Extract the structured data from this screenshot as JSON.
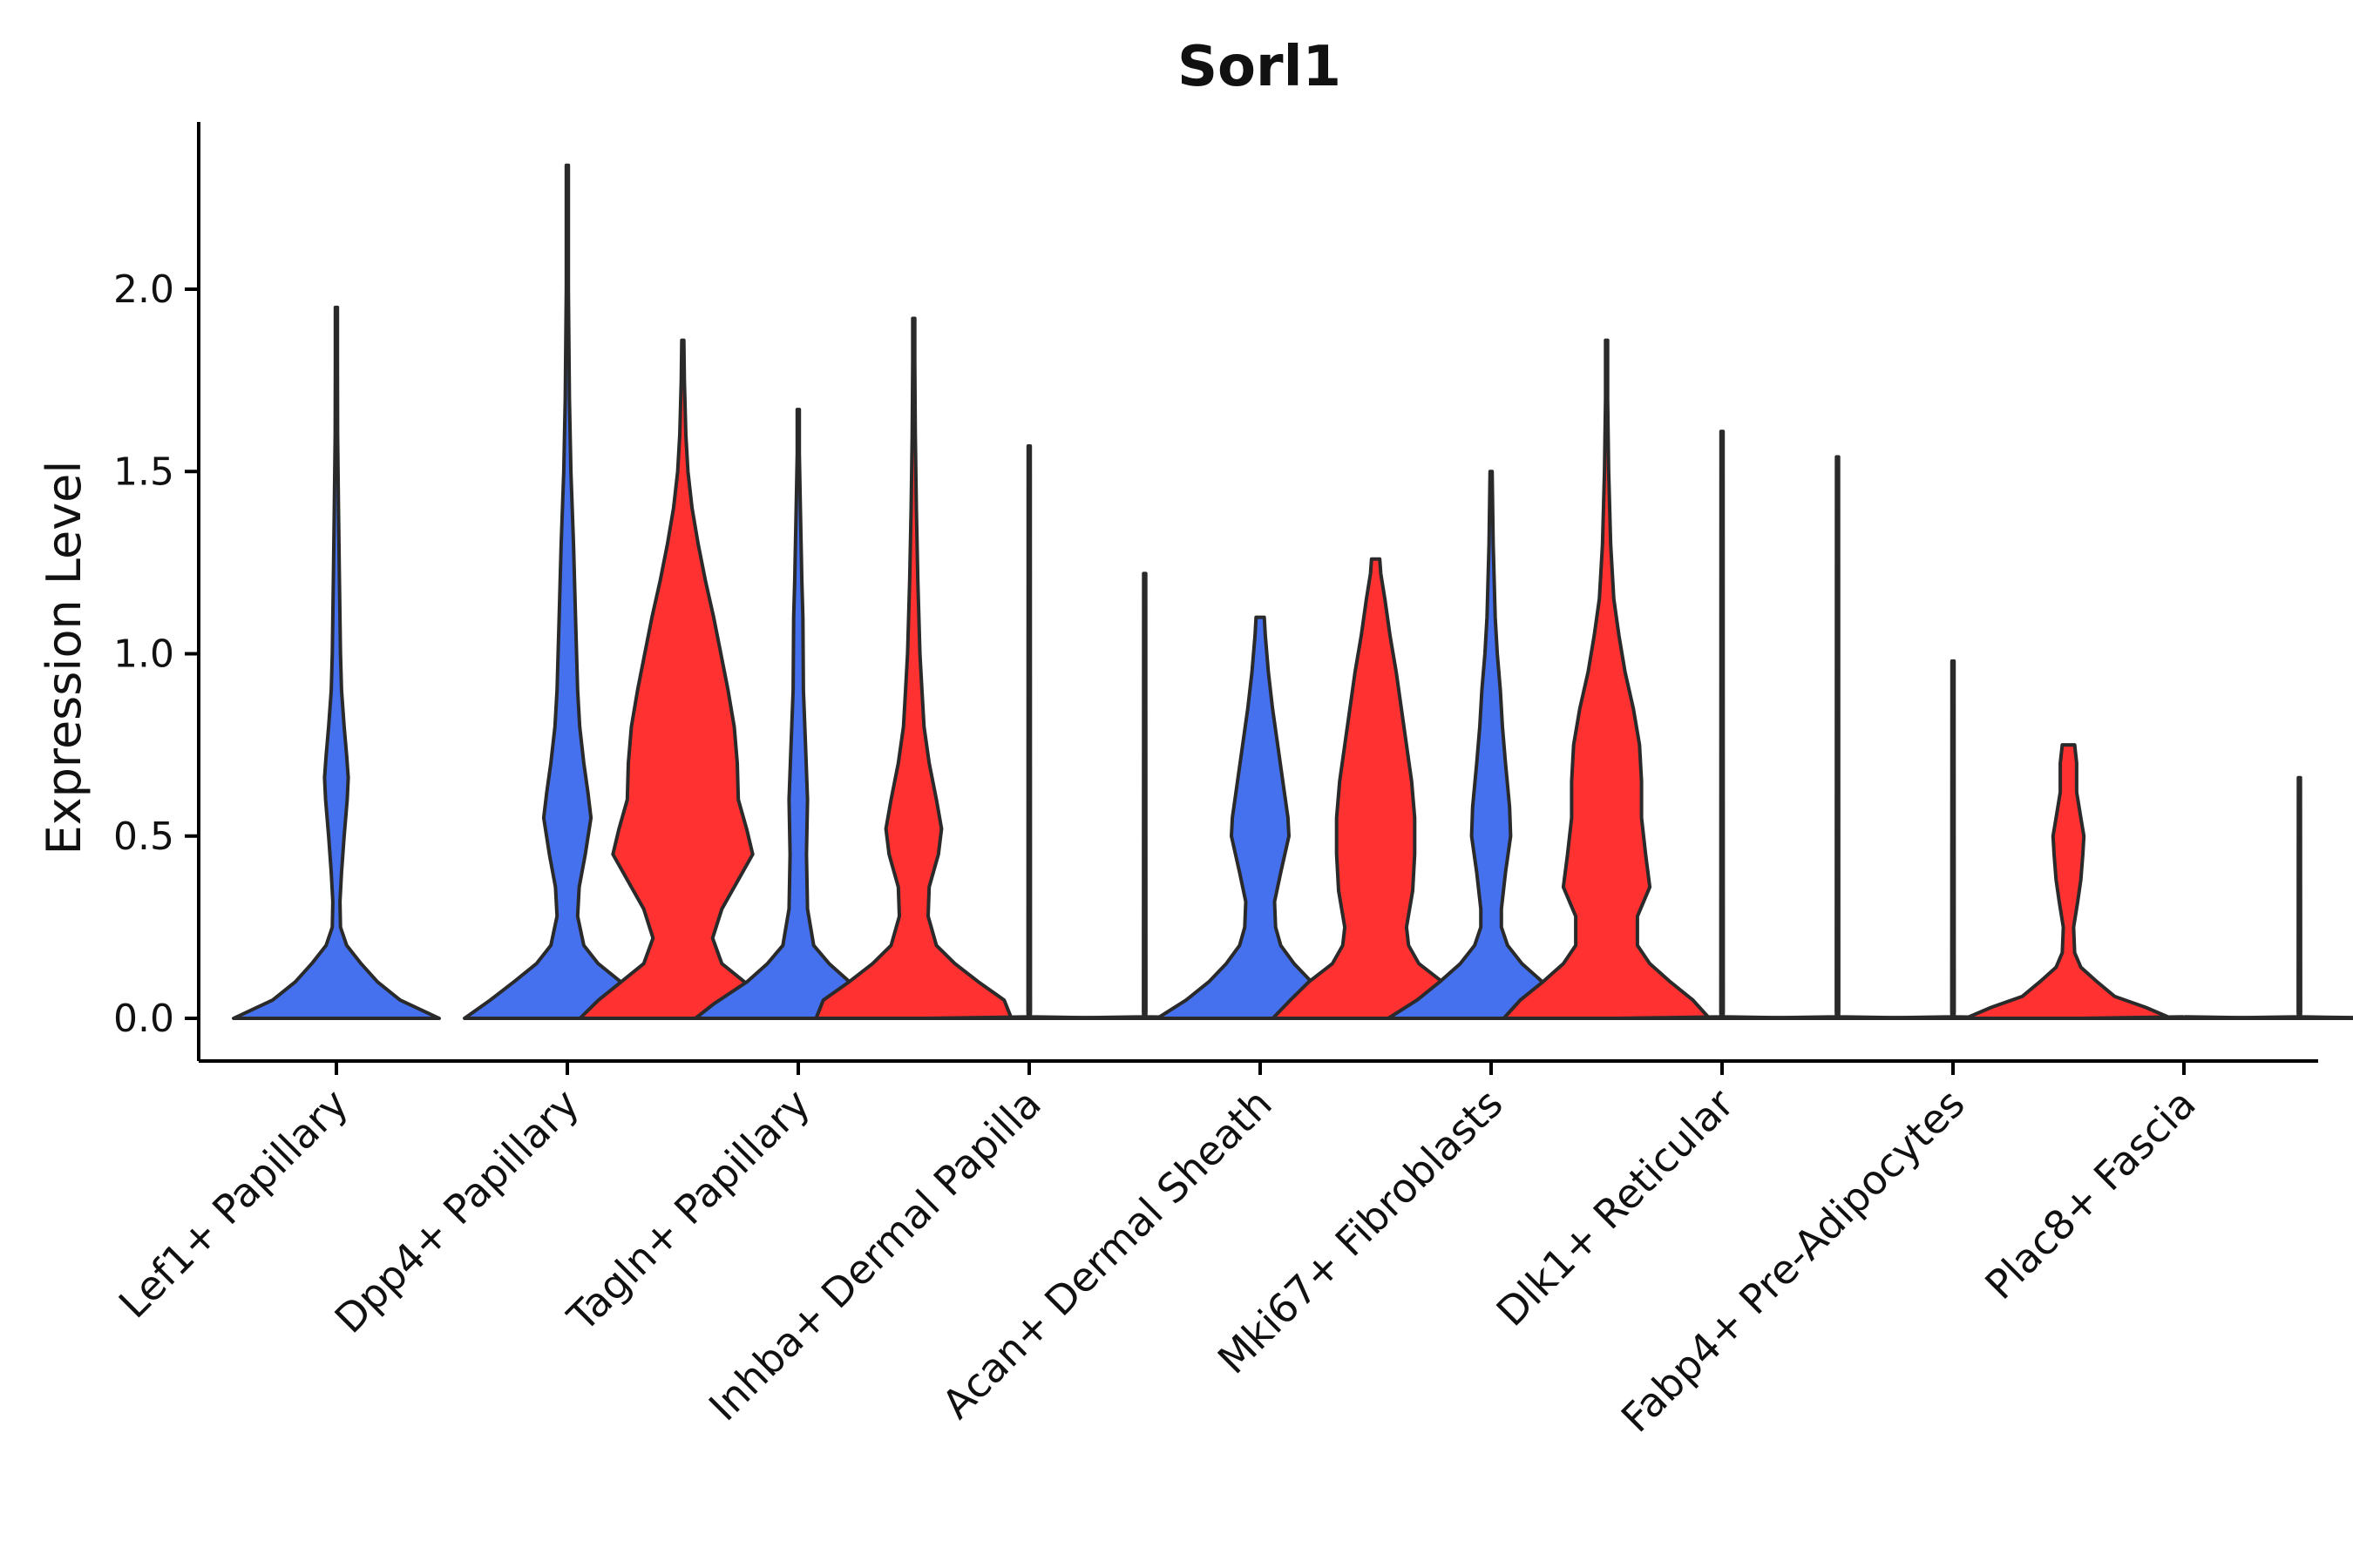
{
  "chart_data": {
    "type": "violin",
    "title": "Sorl1",
    "xlabel": "",
    "ylabel": "Expression Level",
    "ylim": [
      -0.12,
      2.45
    ],
    "yticks": [
      0.0,
      0.5,
      1.0,
      1.5,
      2.0
    ],
    "ytick_labels": [
      "0.0",
      "0.5",
      "1.0",
      "1.5",
      "2.0"
    ],
    "legend": "none",
    "groups": [
      {
        "name": "blue",
        "color": "#4671ee"
      },
      {
        "name": "red",
        "color": "#ff3131"
      }
    ],
    "categories": [
      "Lef1+ Papillary",
      "Dpp4+ Papillary",
      "Tagln+ Papillary",
      "Inhba+ Dermal Papilla",
      "Acan+ Dermal Sheath",
      "Mki67+ Fibroblasts",
      "Dlk1+ Reticular",
      "Fabp4+ Pre-Adipocytes",
      "Plac8+ Fascia"
    ],
    "violins": [
      {
        "category": "Lef1+ Papillary",
        "group": "blue",
        "max": 1.95,
        "profile": [
          [
            0.0,
            1.0
          ],
          [
            0.05,
            0.62
          ],
          [
            0.1,
            0.4
          ],
          [
            0.15,
            0.24
          ],
          [
            0.2,
            0.1
          ],
          [
            0.25,
            0.04
          ],
          [
            0.32,
            0.035
          ],
          [
            0.4,
            0.05
          ],
          [
            0.5,
            0.075
          ],
          [
            0.6,
            0.105
          ],
          [
            0.66,
            0.115
          ],
          [
            0.72,
            0.1
          ],
          [
            0.8,
            0.075
          ],
          [
            0.9,
            0.05
          ],
          [
            1.0,
            0.04
          ],
          [
            1.2,
            0.03
          ],
          [
            1.4,
            0.02
          ],
          [
            1.6,
            0.012
          ],
          [
            1.8,
            0.006
          ],
          [
            1.95,
            0.002
          ]
        ]
      },
      {
        "category": "Dpp4+ Papillary",
        "group": "blue",
        "max": 2.34,
        "profile": [
          [
            0.0,
            1.0
          ],
          [
            0.05,
            0.75
          ],
          [
            0.1,
            0.52
          ],
          [
            0.15,
            0.3
          ],
          [
            0.2,
            0.16
          ],
          [
            0.28,
            0.1
          ],
          [
            0.36,
            0.115
          ],
          [
            0.45,
            0.175
          ],
          [
            0.55,
            0.23
          ],
          [
            0.62,
            0.2
          ],
          [
            0.7,
            0.16
          ],
          [
            0.8,
            0.12
          ],
          [
            0.9,
            0.1
          ],
          [
            1.0,
            0.09
          ],
          [
            1.1,
            0.08
          ],
          [
            1.3,
            0.06
          ],
          [
            1.5,
            0.035
          ],
          [
            1.7,
            0.02
          ],
          [
            2.0,
            0.01
          ],
          [
            2.34,
            0.002
          ]
        ]
      },
      {
        "category": "Dpp4+ Papillary",
        "group": "red",
        "max": 1.86,
        "profile": [
          [
            0.0,
            1.0
          ],
          [
            0.05,
            0.82
          ],
          [
            0.1,
            0.6
          ],
          [
            0.15,
            0.38
          ],
          [
            0.22,
            0.29
          ],
          [
            0.3,
            0.38
          ],
          [
            0.38,
            0.54
          ],
          [
            0.45,
            0.68
          ],
          [
            0.52,
            0.62
          ],
          [
            0.6,
            0.54
          ],
          [
            0.7,
            0.53
          ],
          [
            0.8,
            0.5
          ],
          [
            0.9,
            0.44
          ],
          [
            1.0,
            0.37
          ],
          [
            1.1,
            0.3
          ],
          [
            1.2,
            0.22
          ],
          [
            1.3,
            0.15
          ],
          [
            1.4,
            0.09
          ],
          [
            1.5,
            0.05
          ],
          [
            1.6,
            0.03
          ],
          [
            1.75,
            0.015
          ],
          [
            1.86,
            0.003
          ]
        ]
      },
      {
        "category": "Tagln+ Papillary",
        "group": "blue",
        "max": 1.67,
        "profile": [
          [
            0.0,
            1.0
          ],
          [
            0.04,
            0.82
          ],
          [
            0.1,
            0.5
          ],
          [
            0.15,
            0.3
          ],
          [
            0.2,
            0.15
          ],
          [
            0.3,
            0.09
          ],
          [
            0.45,
            0.08
          ],
          [
            0.6,
            0.09
          ],
          [
            0.75,
            0.07
          ],
          [
            0.9,
            0.05
          ],
          [
            1.1,
            0.045
          ],
          [
            1.2,
            0.035
          ],
          [
            1.4,
            0.02
          ],
          [
            1.55,
            0.01
          ],
          [
            1.67,
            0.002
          ]
        ]
      },
      {
        "category": "Tagln+ Papillary",
        "group": "red",
        "max": 1.92,
        "profile": [
          [
            0.0,
            0.95
          ],
          [
            0.05,
            0.88
          ],
          [
            0.1,
            0.63
          ],
          [
            0.15,
            0.4
          ],
          [
            0.2,
            0.22
          ],
          [
            0.28,
            0.14
          ],
          [
            0.36,
            0.15
          ],
          [
            0.45,
            0.24
          ],
          [
            0.52,
            0.27
          ],
          [
            0.6,
            0.22
          ],
          [
            0.7,
            0.15
          ],
          [
            0.8,
            0.1
          ],
          [
            0.9,
            0.08
          ],
          [
            1.0,
            0.06
          ],
          [
            1.2,
            0.04
          ],
          [
            1.4,
            0.025
          ],
          [
            1.6,
            0.015
          ],
          [
            1.8,
            0.008
          ],
          [
            1.92,
            0.002
          ]
        ]
      },
      {
        "category": "Inhba+ Dermal Papilla",
        "group": "blue",
        "max": 1.57,
        "profile": [
          [
            0.0,
            1.0
          ],
          [
            0.004,
            0.0
          ],
          [
            0.02,
            0.012
          ],
          [
            1.57,
            0.004
          ]
        ]
      },
      {
        "category": "Inhba+ Dermal Papilla",
        "group": "red",
        "max": 1.22,
        "profile": [
          [
            0.0,
            1.0
          ],
          [
            0.004,
            0.0
          ],
          [
            0.02,
            0.012
          ],
          [
            1.22,
            0.004
          ]
        ]
      },
      {
        "category": "Acan+ Dermal Sheath",
        "group": "blue",
        "max": 1.1,
        "profile": [
          [
            0.0,
            1.0
          ],
          [
            0.05,
            0.72
          ],
          [
            0.1,
            0.5
          ],
          [
            0.15,
            0.33
          ],
          [
            0.2,
            0.2
          ],
          [
            0.25,
            0.15
          ],
          [
            0.32,
            0.14
          ],
          [
            0.4,
            0.2
          ],
          [
            0.5,
            0.28
          ],
          [
            0.55,
            0.27
          ],
          [
            0.65,
            0.22
          ],
          [
            0.75,
            0.17
          ],
          [
            0.85,
            0.12
          ],
          [
            0.95,
            0.08
          ],
          [
            1.05,
            0.05
          ],
          [
            1.1,
            0.04
          ]
        ]
      },
      {
        "category": "Acan+ Dermal Sheath",
        "group": "red",
        "max": 1.26,
        "profile": [
          [
            0.0,
            1.0
          ],
          [
            0.05,
            0.83
          ],
          [
            0.1,
            0.65
          ],
          [
            0.15,
            0.42
          ],
          [
            0.2,
            0.32
          ],
          [
            0.25,
            0.3
          ],
          [
            0.35,
            0.36
          ],
          [
            0.45,
            0.38
          ],
          [
            0.55,
            0.38
          ],
          [
            0.65,
            0.35
          ],
          [
            0.75,
            0.3
          ],
          [
            0.85,
            0.25
          ],
          [
            0.95,
            0.2
          ],
          [
            1.05,
            0.14
          ],
          [
            1.15,
            0.09
          ],
          [
            1.22,
            0.05
          ],
          [
            1.26,
            0.04
          ]
        ]
      },
      {
        "category": "Mki67+ Fibroblasts",
        "group": "blue",
        "max": 1.5,
        "profile": [
          [
            0.0,
            1.0
          ],
          [
            0.05,
            0.72
          ],
          [
            0.1,
            0.5
          ],
          [
            0.15,
            0.3
          ],
          [
            0.2,
            0.16
          ],
          [
            0.25,
            0.1
          ],
          [
            0.3,
            0.1
          ],
          [
            0.4,
            0.14
          ],
          [
            0.5,
            0.19
          ],
          [
            0.58,
            0.18
          ],
          [
            0.7,
            0.14
          ],
          [
            0.8,
            0.11
          ],
          [
            0.9,
            0.09
          ],
          [
            1.0,
            0.06
          ],
          [
            1.1,
            0.04
          ],
          [
            1.3,
            0.02
          ],
          [
            1.5,
            0.003
          ]
        ]
      },
      {
        "category": "Mki67+ Fibroblasts",
        "group": "red",
        "max": 1.86,
        "profile": [
          [
            0.0,
            1.0
          ],
          [
            0.05,
            0.84
          ],
          [
            0.1,
            0.62
          ],
          [
            0.15,
            0.42
          ],
          [
            0.2,
            0.3
          ],
          [
            0.28,
            0.3
          ],
          [
            0.36,
            0.42
          ],
          [
            0.45,
            0.38
          ],
          [
            0.55,
            0.34
          ],
          [
            0.65,
            0.34
          ],
          [
            0.75,
            0.32
          ],
          [
            0.85,
            0.26
          ],
          [
            0.95,
            0.18
          ],
          [
            1.05,
            0.12
          ],
          [
            1.15,
            0.07
          ],
          [
            1.3,
            0.04
          ],
          [
            1.5,
            0.02
          ],
          [
            1.7,
            0.01
          ],
          [
            1.86,
            0.002
          ]
        ]
      },
      {
        "category": "Dlk1+ Reticular",
        "group": "blue",
        "max": 1.61,
        "profile": [
          [
            0.0,
            1.0
          ],
          [
            0.004,
            0.0
          ],
          [
            0.02,
            0.012
          ],
          [
            1.61,
            0.004
          ]
        ]
      },
      {
        "category": "Dlk1+ Reticular",
        "group": "red",
        "max": 1.54,
        "profile": [
          [
            0.0,
            1.0
          ],
          [
            0.004,
            0.0
          ],
          [
            0.02,
            0.012
          ],
          [
            1.54,
            0.004
          ]
        ]
      },
      {
        "category": "Fabp4+ Pre-Adipocytes",
        "group": "blue",
        "max": 0.98,
        "profile": [
          [
            0.0,
            1.0
          ],
          [
            0.004,
            0.0
          ],
          [
            0.02,
            0.012
          ],
          [
            0.98,
            0.004
          ]
        ]
      },
      {
        "category": "Fabp4+ Pre-Adipocytes",
        "group": "red",
        "max": 0.75,
        "profile": [
          [
            0.0,
            1.0
          ],
          [
            0.03,
            0.75
          ],
          [
            0.06,
            0.45
          ],
          [
            0.1,
            0.28
          ],
          [
            0.14,
            0.12
          ],
          [
            0.18,
            0.06
          ],
          [
            0.25,
            0.05
          ],
          [
            0.32,
            0.09
          ],
          [
            0.38,
            0.12
          ],
          [
            0.45,
            0.14
          ],
          [
            0.5,
            0.15
          ],
          [
            0.55,
            0.12
          ],
          [
            0.62,
            0.08
          ],
          [
            0.7,
            0.08
          ],
          [
            0.75,
            0.06
          ]
        ]
      },
      {
        "category": "Plac8+ Fascia",
        "group": "blue",
        "max": 0.0,
        "profile": [
          [
            0.0,
            1.0
          ],
          [
            0.004,
            0.0
          ]
        ]
      },
      {
        "category": "Plac8+ Fascia",
        "group": "red",
        "max": 0.66,
        "profile": [
          [
            0.0,
            1.0
          ],
          [
            0.004,
            0.0
          ],
          [
            0.02,
            0.012
          ],
          [
            0.66,
            0.004
          ]
        ]
      }
    ]
  }
}
